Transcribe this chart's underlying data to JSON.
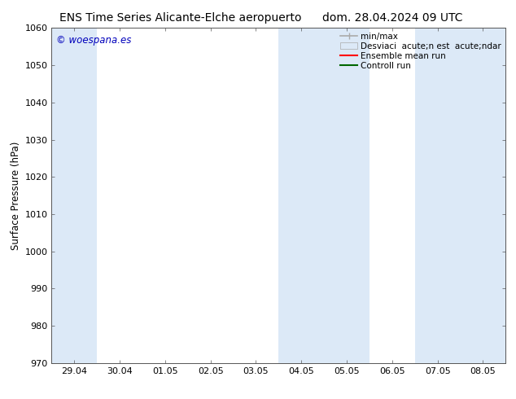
{
  "title_left": "ENS Time Series Alicante-Elche aeropuerto",
  "title_right": "dom. 28.04.2024 09 UTC",
  "ylabel": "Surface Pressure (hPa)",
  "ylim": [
    970,
    1060
  ],
  "yticks": [
    970,
    980,
    990,
    1000,
    1010,
    1020,
    1030,
    1040,
    1050,
    1060
  ],
  "xtick_labels": [
    "29.04",
    "30.04",
    "01.05",
    "02.05",
    "03.05",
    "04.05",
    "05.05",
    "06.05",
    "07.05",
    "08.05"
  ],
  "background_color": "#ffffff",
  "plot_bg_color": "#ffffff",
  "shaded_band_color": "#dce9f7",
  "watermark_text": "© woespana.es",
  "watermark_color": "#0000bb",
  "legend_label_minmax": "min/max",
  "legend_label_std": "Desviaci  acute;n est  acute;ndar",
  "legend_label_ens": "Ensemble mean run",
  "legend_label_ctrl": "Controll run",
  "legend_color_minmax": "#aaaaaa",
  "legend_color_std": "#dce9f7",
  "legend_color_ens": "#ff0000",
  "legend_color_ctrl": "#006600",
  "title_fontsize": 10,
  "tick_fontsize": 8,
  "ylabel_fontsize": 8.5,
  "legend_fontsize": 7.5,
  "shaded_ranges": [
    [
      -0.5,
      0.5
    ],
    [
      4.5,
      6.5
    ],
    [
      7.5,
      9.5
    ]
  ]
}
